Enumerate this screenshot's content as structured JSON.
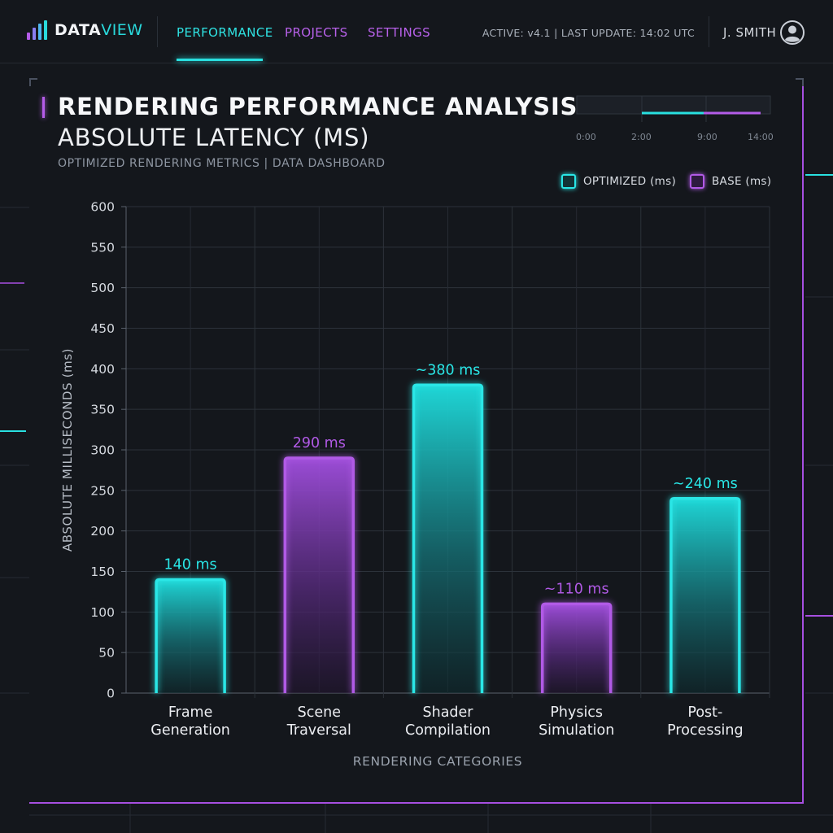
{
  "app": {
    "name_main": "DATA",
    "name_accent": "VIEW"
  },
  "nav": {
    "tabs": [
      {
        "label": "PERFORMANCE",
        "active": true
      },
      {
        "label": "PROJECTS",
        "active": false
      },
      {
        "label": "SETTINGS",
        "active": false
      }
    ]
  },
  "status_text": "ACTIVE: v4.1 | LAST UPDATE: 14:02 UTC",
  "user": {
    "name": "J. SMITH"
  },
  "timeline": {
    "ticks": [
      "0:00",
      "2:00",
      "9:00",
      "14:00"
    ]
  },
  "colors": {
    "optimized": "#29e6e6",
    "base": "#b15ae6",
    "background": "#14171c"
  },
  "chart_data": {
    "type": "bar",
    "title": "RENDERING PERFORMANCE ANALYSIS",
    "subtitle": "ABSOLUTE LATENCY (MS)",
    "caption": "OPTIMIZED RENDERING METRICS | DATA DASHBOARD",
    "xlabel": "RENDERING CATEGORIES",
    "ylabel": "ABSOLUTE MILLISECONDS (ms)",
    "ylim": [
      0,
      600
    ],
    "yticks": [
      0,
      50,
      100,
      150,
      200,
      250,
      300,
      350,
      400,
      450,
      500,
      550,
      600
    ],
    "grid": true,
    "legend_position": "top-right",
    "legend": [
      {
        "label": "OPTIMIZED (ms)",
        "series": "optimized"
      },
      {
        "label": "BASE (ms)",
        "series": "base"
      }
    ],
    "categories": [
      [
        "Frame",
        "Generation"
      ],
      [
        "Scene",
        "Traversal"
      ],
      [
        "Shader",
        "Compilation"
      ],
      [
        "Physics",
        "Simulation"
      ],
      [
        "Post-",
        "Processing"
      ]
    ],
    "bars": [
      {
        "value": 140,
        "label": "140 ms",
        "series": "optimized"
      },
      {
        "value": 290,
        "label": "290 ms",
        "series": "base"
      },
      {
        "value": 380,
        "label": "~380 ms",
        "series": "optimized"
      },
      {
        "value": 110,
        "label": "~110 ms",
        "series": "base"
      },
      {
        "value": 240,
        "label": "~240 ms",
        "series": "optimized"
      }
    ]
  }
}
